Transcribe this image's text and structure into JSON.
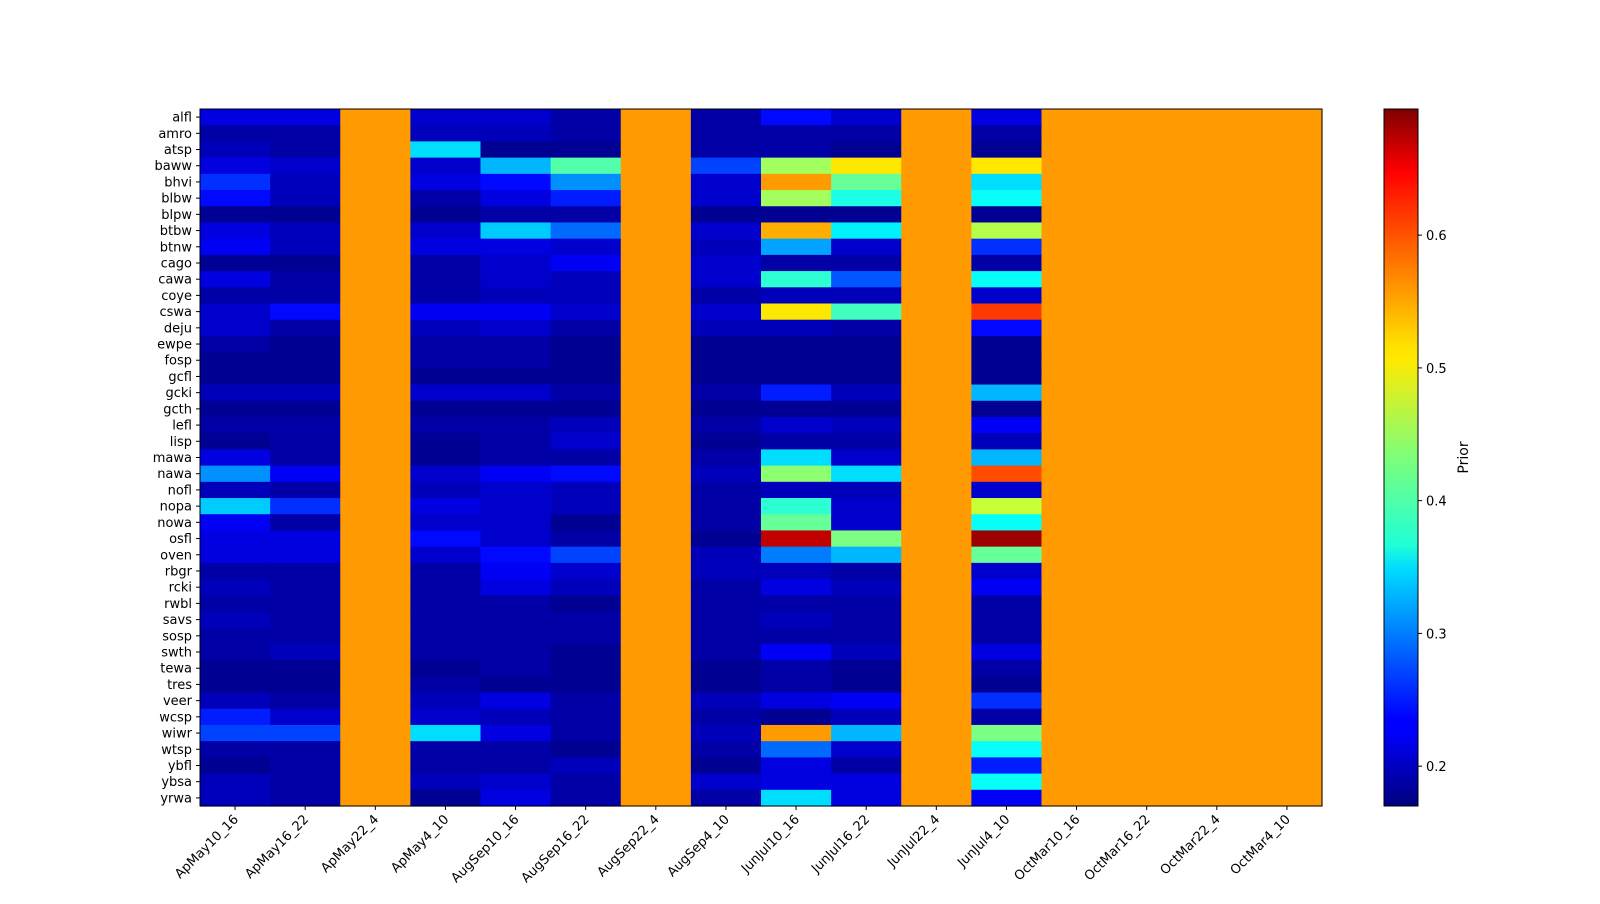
{
  "chart_data": {
    "type": "heatmap",
    "title": "",
    "xlabel": "",
    "ylabel": "",
    "x_categories": [
      "ApMay10_16",
      "ApMay16_22",
      "ApMay22_4",
      "ApMay4_10",
      "AugSep10_16",
      "AugSep16_22",
      "AugSep22_4",
      "AugSep4_10",
      "JunJul10_16",
      "JunJul16_22",
      "JunJul22_4",
      "JunJul4_10",
      "OctMar10_16",
      "OctMar16_22",
      "OctMar22_4",
      "OctMar4_10"
    ],
    "y_categories": [
      "alfl",
      "amro",
      "atsp",
      "baww",
      "bhvi",
      "blbw",
      "blpw",
      "btbw",
      "btnw",
      "cago",
      "cawa",
      "coye",
      "cswa",
      "deju",
      "ewpe",
      "fosp",
      "gcfl",
      "gcki",
      "gcth",
      "lefl",
      "lisp",
      "mawa",
      "nawa",
      "nofl",
      "nopa",
      "nowa",
      "osfl",
      "oven",
      "rbgr",
      "rcki",
      "rwbl",
      "savs",
      "sosp",
      "swth",
      "tewa",
      "tres",
      "veer",
      "wcsp",
      "wiwr",
      "wtsp",
      "ybfl",
      "ybsa",
      "yrwa"
    ],
    "colorbar": {
      "label": "Prior",
      "vmin": 0.17,
      "vmax": 0.695,
      "ticks": [
        0.2,
        0.3,
        0.4,
        0.5,
        0.6
      ],
      "colormap": "jet"
    },
    "values": [
      [
        0.22,
        0.22,
        0.55,
        0.21,
        0.21,
        0.19,
        0.55,
        0.19,
        0.24,
        0.21,
        0.55,
        0.22,
        0.55,
        0.55,
        0.55,
        0.55
      ],
      [
        0.19,
        0.19,
        0.55,
        0.2,
        0.2,
        0.19,
        0.55,
        0.19,
        0.19,
        0.19,
        0.55,
        0.19,
        0.55,
        0.55,
        0.55,
        0.55
      ],
      [
        0.2,
        0.19,
        0.55,
        0.35,
        0.18,
        0.18,
        0.55,
        0.19,
        0.19,
        0.18,
        0.55,
        0.18,
        0.55,
        0.55,
        0.55,
        0.55
      ],
      [
        0.22,
        0.21,
        0.55,
        0.21,
        0.33,
        0.41,
        0.55,
        0.27,
        0.45,
        0.51,
        0.55,
        0.51,
        0.55,
        0.55,
        0.55,
        0.55
      ],
      [
        0.26,
        0.2,
        0.55,
        0.22,
        0.24,
        0.31,
        0.55,
        0.21,
        0.55,
        0.42,
        0.55,
        0.35,
        0.55,
        0.55,
        0.55,
        0.55
      ],
      [
        0.24,
        0.2,
        0.55,
        0.19,
        0.22,
        0.25,
        0.55,
        0.21,
        0.45,
        0.38,
        0.55,
        0.37,
        0.55,
        0.55,
        0.55,
        0.55
      ],
      [
        0.18,
        0.18,
        0.55,
        0.18,
        0.19,
        0.19,
        0.55,
        0.18,
        0.18,
        0.18,
        0.55,
        0.18,
        0.55,
        0.55,
        0.55,
        0.55
      ],
      [
        0.22,
        0.2,
        0.55,
        0.21,
        0.34,
        0.29,
        0.55,
        0.21,
        0.54,
        0.36,
        0.55,
        0.46,
        0.55,
        0.55,
        0.55,
        0.55
      ],
      [
        0.23,
        0.2,
        0.55,
        0.22,
        0.22,
        0.21,
        0.55,
        0.2,
        0.32,
        0.21,
        0.55,
        0.26,
        0.55,
        0.55,
        0.55,
        0.55
      ],
      [
        0.18,
        0.18,
        0.55,
        0.19,
        0.21,
        0.23,
        0.55,
        0.21,
        0.19,
        0.19,
        0.55,
        0.19,
        0.55,
        0.55,
        0.55,
        0.55
      ],
      [
        0.22,
        0.19,
        0.55,
        0.19,
        0.21,
        0.2,
        0.55,
        0.21,
        0.39,
        0.28,
        0.55,
        0.37,
        0.55,
        0.55,
        0.55,
        0.55
      ],
      [
        0.19,
        0.19,
        0.55,
        0.19,
        0.2,
        0.2,
        0.55,
        0.19,
        0.2,
        0.2,
        0.55,
        0.21,
        0.55,
        0.55,
        0.55,
        0.55
      ],
      [
        0.21,
        0.24,
        0.55,
        0.23,
        0.23,
        0.21,
        0.55,
        0.21,
        0.51,
        0.4,
        0.55,
        0.6,
        0.55,
        0.55,
        0.55,
        0.55
      ],
      [
        0.21,
        0.19,
        0.55,
        0.2,
        0.21,
        0.19,
        0.55,
        0.2,
        0.2,
        0.19,
        0.55,
        0.24,
        0.55,
        0.55,
        0.55,
        0.55
      ],
      [
        0.19,
        0.18,
        0.55,
        0.19,
        0.19,
        0.18,
        0.55,
        0.18,
        0.18,
        0.18,
        0.55,
        0.18,
        0.55,
        0.55,
        0.55,
        0.55
      ],
      [
        0.18,
        0.18,
        0.55,
        0.19,
        0.19,
        0.18,
        0.55,
        0.18,
        0.18,
        0.18,
        0.55,
        0.18,
        0.55,
        0.55,
        0.55,
        0.55
      ],
      [
        0.18,
        0.18,
        0.55,
        0.18,
        0.18,
        0.18,
        0.55,
        0.18,
        0.18,
        0.18,
        0.55,
        0.18,
        0.55,
        0.55,
        0.55,
        0.55
      ],
      [
        0.2,
        0.2,
        0.55,
        0.21,
        0.21,
        0.19,
        0.55,
        0.19,
        0.25,
        0.2,
        0.55,
        0.33,
        0.55,
        0.55,
        0.55,
        0.55
      ],
      [
        0.18,
        0.18,
        0.55,
        0.18,
        0.18,
        0.18,
        0.55,
        0.18,
        0.18,
        0.18,
        0.55,
        0.18,
        0.55,
        0.55,
        0.55,
        0.55
      ],
      [
        0.19,
        0.19,
        0.55,
        0.19,
        0.19,
        0.2,
        0.55,
        0.19,
        0.21,
        0.2,
        0.55,
        0.23,
        0.55,
        0.55,
        0.55,
        0.55
      ],
      [
        0.18,
        0.19,
        0.55,
        0.18,
        0.19,
        0.21,
        0.55,
        0.18,
        0.19,
        0.19,
        0.55,
        0.2,
        0.55,
        0.55,
        0.55,
        0.55
      ],
      [
        0.22,
        0.19,
        0.55,
        0.18,
        0.19,
        0.19,
        0.55,
        0.19,
        0.35,
        0.21,
        0.55,
        0.33,
        0.55,
        0.55,
        0.55,
        0.55
      ],
      [
        0.31,
        0.23,
        0.55,
        0.21,
        0.23,
        0.24,
        0.55,
        0.2,
        0.44,
        0.35,
        0.55,
        0.59,
        0.55,
        0.55,
        0.55,
        0.55
      ],
      [
        0.2,
        0.19,
        0.55,
        0.2,
        0.21,
        0.2,
        0.55,
        0.19,
        0.2,
        0.2,
        0.55,
        0.21,
        0.55,
        0.55,
        0.55,
        0.55
      ],
      [
        0.34,
        0.26,
        0.55,
        0.22,
        0.21,
        0.2,
        0.55,
        0.19,
        0.39,
        0.21,
        0.55,
        0.47,
        0.55,
        0.55,
        0.55,
        0.55
      ],
      [
        0.23,
        0.19,
        0.55,
        0.21,
        0.21,
        0.18,
        0.55,
        0.19,
        0.42,
        0.21,
        0.55,
        0.37,
        0.55,
        0.55,
        0.55,
        0.55
      ],
      [
        0.22,
        0.22,
        0.55,
        0.24,
        0.21,
        0.19,
        0.55,
        0.18,
        0.66,
        0.43,
        0.55,
        0.68,
        0.55,
        0.55,
        0.55,
        0.55
      ],
      [
        0.22,
        0.22,
        0.55,
        0.21,
        0.24,
        0.27,
        0.55,
        0.2,
        0.3,
        0.33,
        0.55,
        0.42,
        0.55,
        0.55,
        0.55,
        0.55
      ],
      [
        0.19,
        0.19,
        0.55,
        0.19,
        0.23,
        0.21,
        0.55,
        0.2,
        0.2,
        0.19,
        0.55,
        0.21,
        0.55,
        0.55,
        0.55,
        0.55
      ],
      [
        0.2,
        0.19,
        0.55,
        0.19,
        0.22,
        0.2,
        0.55,
        0.19,
        0.22,
        0.2,
        0.55,
        0.23,
        0.55,
        0.55,
        0.55,
        0.55
      ],
      [
        0.19,
        0.19,
        0.55,
        0.19,
        0.19,
        0.18,
        0.55,
        0.19,
        0.19,
        0.19,
        0.55,
        0.19,
        0.55,
        0.55,
        0.55,
        0.55
      ],
      [
        0.2,
        0.19,
        0.55,
        0.19,
        0.19,
        0.19,
        0.55,
        0.19,
        0.2,
        0.19,
        0.55,
        0.19,
        0.55,
        0.55,
        0.55,
        0.55
      ],
      [
        0.19,
        0.19,
        0.55,
        0.19,
        0.19,
        0.19,
        0.55,
        0.19,
        0.19,
        0.19,
        0.55,
        0.19,
        0.55,
        0.55,
        0.55,
        0.55
      ],
      [
        0.19,
        0.2,
        0.55,
        0.19,
        0.19,
        0.18,
        0.55,
        0.19,
        0.23,
        0.2,
        0.55,
        0.22,
        0.55,
        0.55,
        0.55,
        0.55
      ],
      [
        0.18,
        0.18,
        0.55,
        0.18,
        0.19,
        0.18,
        0.55,
        0.18,
        0.19,
        0.18,
        0.55,
        0.19,
        0.55,
        0.55,
        0.55,
        0.55
      ],
      [
        0.18,
        0.18,
        0.55,
        0.19,
        0.18,
        0.18,
        0.55,
        0.18,
        0.19,
        0.18,
        0.55,
        0.18,
        0.55,
        0.55,
        0.55,
        0.55
      ],
      [
        0.2,
        0.19,
        0.55,
        0.2,
        0.22,
        0.19,
        0.55,
        0.2,
        0.22,
        0.23,
        0.55,
        0.26,
        0.55,
        0.55,
        0.55,
        0.55
      ],
      [
        0.25,
        0.21,
        0.55,
        0.21,
        0.2,
        0.19,
        0.55,
        0.19,
        0.18,
        0.2,
        0.55,
        0.19,
        0.55,
        0.55,
        0.55,
        0.55
      ],
      [
        0.27,
        0.27,
        0.55,
        0.35,
        0.22,
        0.19,
        0.55,
        0.2,
        0.55,
        0.33,
        0.55,
        0.43,
        0.55,
        0.55,
        0.55,
        0.55
      ],
      [
        0.19,
        0.19,
        0.55,
        0.19,
        0.19,
        0.18,
        0.55,
        0.19,
        0.29,
        0.21,
        0.55,
        0.37,
        0.55,
        0.55,
        0.55,
        0.55
      ],
      [
        0.18,
        0.19,
        0.55,
        0.19,
        0.19,
        0.2,
        0.55,
        0.18,
        0.22,
        0.19,
        0.55,
        0.25,
        0.55,
        0.55,
        0.55,
        0.55
      ],
      [
        0.2,
        0.19,
        0.55,
        0.2,
        0.21,
        0.19,
        0.55,
        0.21,
        0.22,
        0.22,
        0.55,
        0.37,
        0.55,
        0.55,
        0.55,
        0.55
      ],
      [
        0.2,
        0.19,
        0.55,
        0.18,
        0.22,
        0.19,
        0.55,
        0.19,
        0.35,
        0.22,
        0.55,
        0.23,
        0.55,
        0.55,
        0.55,
        0.55
      ]
    ]
  }
}
